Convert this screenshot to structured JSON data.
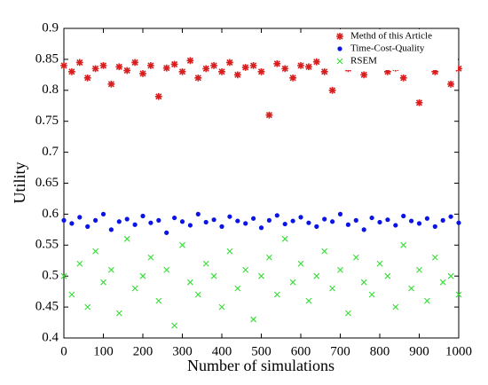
{
  "chart_data": {
    "type": "scatter",
    "xlabel": "Number of simulations",
    "ylabel": "Utility",
    "xlim": [
      0,
      1000
    ],
    "xticks": [
      0,
      100,
      200,
      300,
      400,
      500,
      600,
      700,
      800,
      900,
      1000
    ],
    "ylim": [
      0.4,
      0.9
    ],
    "yticks": [
      0.4,
      0.45,
      0.5,
      0.55,
      0.6,
      0.65,
      0.7,
      0.75,
      0.8,
      0.85,
      0.9
    ],
    "legend": "upper right",
    "x": [
      0,
      20,
      40,
      60,
      80,
      100,
      120,
      140,
      160,
      180,
      200,
      220,
      240,
      260,
      280,
      300,
      320,
      340,
      360,
      380,
      400,
      420,
      440,
      460,
      480,
      500,
      520,
      540,
      560,
      580,
      600,
      620,
      640,
      660,
      680,
      700,
      720,
      740,
      760,
      780,
      800,
      820,
      840,
      860,
      880,
      900,
      920,
      940,
      960,
      980,
      1000
    ],
    "series": [
      {
        "name": "Methd of this Article",
        "color": "#d81e1e",
        "marker": "asterisk",
        "values": [
          0.84,
          0.83,
          0.845,
          0.82,
          0.835,
          0.84,
          0.81,
          0.838,
          0.832,
          0.845,
          0.827,
          0.84,
          0.79,
          0.836,
          0.842,
          0.83,
          0.848,
          0.82,
          0.835,
          0.84,
          0.83,
          0.845,
          0.825,
          0.837,
          0.84,
          0.83,
          0.76,
          0.843,
          0.835,
          0.82,
          0.84,
          0.838,
          0.846,
          0.83,
          0.8,
          0.84,
          0.835,
          0.842,
          0.825,
          0.84,
          0.847,
          0.83,
          0.836,
          0.82,
          0.84,
          0.78,
          0.838,
          0.83,
          0.845,
          0.81,
          0.835
        ]
      },
      {
        "name": "Time-Cost-Quality",
        "color": "#0a14e6",
        "marker": "circle",
        "values": [
          0.59,
          0.585,
          0.595,
          0.58,
          0.59,
          0.6,
          0.575,
          0.588,
          0.592,
          0.583,
          0.597,
          0.586,
          0.59,
          0.57,
          0.594,
          0.588,
          0.582,
          0.6,
          0.587,
          0.591,
          0.58,
          0.596,
          0.589,
          0.585,
          0.593,
          0.578,
          0.59,
          0.598,
          0.584,
          0.589,
          0.595,
          0.586,
          0.58,
          0.592,
          0.588,
          0.6,
          0.583,
          0.59,
          0.575,
          0.594,
          0.587,
          0.591,
          0.582,
          0.597,
          0.589,
          0.585,
          0.593,
          0.58,
          0.59,
          0.596,
          0.586
        ]
      },
      {
        "name": "RSEM",
        "color": "#33dd33",
        "marker": "cross",
        "values": [
          0.5,
          0.47,
          0.52,
          0.45,
          0.54,
          0.49,
          0.51,
          0.44,
          0.56,
          0.48,
          0.5,
          0.53,
          0.46,
          0.51,
          0.42,
          0.55,
          0.49,
          0.47,
          0.52,
          0.5,
          0.45,
          0.54,
          0.48,
          0.51,
          0.43,
          0.5,
          0.53,
          0.47,
          0.56,
          0.49,
          0.52,
          0.46,
          0.5,
          0.54,
          0.48,
          0.51,
          0.44,
          0.53,
          0.49,
          0.47,
          0.52,
          0.5,
          0.45,
          0.55,
          0.48,
          0.51,
          0.46,
          0.53,
          0.49,
          0.5,
          0.47
        ]
      }
    ]
  }
}
